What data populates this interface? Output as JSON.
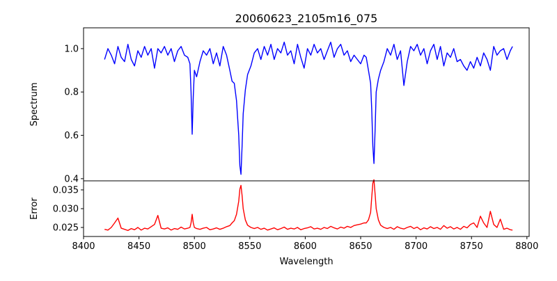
{
  "chart_data": {
    "type": "line",
    "title": "20060623_2105m16_075",
    "xlabel": "Wavelength",
    "xlim": [
      8400,
      8802
    ],
    "xticks": [
      8400,
      8450,
      8500,
      8550,
      8600,
      8650,
      8700,
      8750,
      8800
    ],
    "x": [
      8419,
      8422,
      8425,
      8428,
      8431,
      8434,
      8437,
      8440,
      8443,
      8446,
      8449,
      8452,
      8455,
      8458,
      8461,
      8464,
      8467,
      8470,
      8473,
      8476,
      8479,
      8482,
      8485,
      8488,
      8491,
      8494,
      8496,
      8497,
      8498,
      8499,
      8500,
      8502,
      8505,
      8508,
      8511,
      8514,
      8517,
      8520,
      8523,
      8526,
      8529,
      8532,
      8534,
      8536,
      8538,
      8540,
      8541,
      8542,
      8543,
      8544,
      8546,
      8548,
      8551,
      8554,
      8557,
      8560,
      8563,
      8566,
      8569,
      8572,
      8575,
      8578,
      8581,
      8584,
      8587,
      8590,
      8593,
      8596,
      8599,
      8602,
      8605,
      8608,
      8611,
      8614,
      8617,
      8620,
      8623,
      8626,
      8629,
      8632,
      8635,
      8638,
      8641,
      8644,
      8647,
      8650,
      8653,
      8655,
      8657,
      8659,
      8660,
      8661,
      8662,
      8663,
      8664,
      8666,
      8668,
      8671,
      8674,
      8677,
      8680,
      8683,
      8686,
      8689,
      8692,
      8695,
      8698,
      8701,
      8704,
      8707,
      8710,
      8713,
      8716,
      8719,
      8722,
      8725,
      8728,
      8731,
      8734,
      8737,
      8740,
      8743,
      8746,
      8749,
      8752,
      8755,
      8758,
      8761,
      8764,
      8767,
      8770,
      8773,
      8776,
      8779,
      8782,
      8785,
      8787
    ],
    "panels": [
      {
        "name": "spectrum",
        "ylabel": "Spectrum",
        "ylim": [
          0.39,
          1.096
        ],
        "yticks": [
          0.4,
          0.6,
          0.8,
          1.0
        ],
        "ytick_labels": [
          "0.4",
          "0.6",
          "0.8",
          "1.0"
        ],
        "color": "#0000ff",
        "values": [
          0.95,
          1.0,
          0.97,
          0.93,
          1.01,
          0.96,
          0.94,
          1.02,
          0.95,
          0.92,
          0.99,
          0.96,
          1.01,
          0.97,
          1.0,
          0.91,
          1.0,
          0.98,
          1.01,
          0.97,
          1.0,
          0.94,
          0.99,
          1.01,
          0.97,
          0.96,
          0.93,
          0.8,
          0.605,
          0.78,
          0.9,
          0.87,
          0.94,
          0.99,
          0.97,
          1.0,
          0.93,
          0.98,
          0.92,
          1.01,
          0.97,
          0.9,
          0.85,
          0.84,
          0.76,
          0.6,
          0.46,
          0.42,
          0.55,
          0.7,
          0.81,
          0.88,
          0.92,
          0.98,
          1.0,
          0.95,
          1.01,
          0.97,
          1.02,
          0.95,
          1.0,
          0.98,
          1.03,
          0.97,
          0.99,
          0.93,
          1.02,
          0.96,
          0.91,
          1.0,
          0.97,
          1.02,
          0.98,
          1.0,
          0.95,
          0.99,
          1.03,
          0.96,
          1.0,
          1.02,
          0.97,
          0.99,
          0.94,
          0.97,
          0.95,
          0.93,
          0.97,
          0.96,
          0.9,
          0.84,
          0.72,
          0.55,
          0.47,
          0.62,
          0.8,
          0.86,
          0.9,
          0.94,
          1.0,
          0.97,
          1.02,
          0.95,
          0.99,
          0.83,
          0.94,
          1.01,
          0.99,
          1.02,
          0.97,
          1.0,
          0.93,
          0.99,
          1.02,
          0.95,
          1.01,
          0.92,
          0.98,
          0.96,
          1.0,
          0.94,
          0.95,
          0.92,
          0.9,
          0.94,
          0.91,
          0.96,
          0.92,
          0.98,
          0.95,
          0.9,
          1.01,
          0.97,
          0.99,
          1.0,
          0.95,
          0.99,
          1.01
        ]
      },
      {
        "name": "error",
        "ylabel": "Error",
        "ylim": [
          0.0226,
          0.0374
        ],
        "yticks": [
          0.025,
          0.03,
          0.035
        ],
        "ytick_labels": [
          "0.025",
          "0.030",
          "0.035"
        ],
        "color": "#ff0000",
        "values": [
          0.0245,
          0.0243,
          0.025,
          0.0262,
          0.0275,
          0.0248,
          0.0245,
          0.0242,
          0.0247,
          0.0244,
          0.025,
          0.0243,
          0.0248,
          0.0246,
          0.0252,
          0.0258,
          0.0282,
          0.0248,
          0.0246,
          0.0249,
          0.0243,
          0.0247,
          0.0245,
          0.0251,
          0.0246,
          0.0248,
          0.025,
          0.0262,
          0.0285,
          0.0262,
          0.025,
          0.0247,
          0.0245,
          0.0248,
          0.025,
          0.0244,
          0.0246,
          0.0249,
          0.0245,
          0.0248,
          0.0252,
          0.0255,
          0.0262,
          0.0268,
          0.0285,
          0.032,
          0.0352,
          0.0362,
          0.0335,
          0.03,
          0.027,
          0.0256,
          0.025,
          0.0247,
          0.025,
          0.0245,
          0.0248,
          0.0243,
          0.0246,
          0.0249,
          0.0244,
          0.0247,
          0.0251,
          0.0245,
          0.0248,
          0.0246,
          0.025,
          0.0244,
          0.0247,
          0.0249,
          0.0252,
          0.0246,
          0.0248,
          0.0245,
          0.025,
          0.0247,
          0.0253,
          0.0249,
          0.0246,
          0.0251,
          0.0248,
          0.0253,
          0.025,
          0.0255,
          0.0257,
          0.0259,
          0.0262,
          0.0262,
          0.027,
          0.029,
          0.033,
          0.0368,
          0.0377,
          0.034,
          0.03,
          0.027,
          0.0256,
          0.025,
          0.0247,
          0.025,
          0.0245,
          0.0252,
          0.0248,
          0.0246,
          0.025,
          0.0253,
          0.0247,
          0.0251,
          0.0244,
          0.0249,
          0.0246,
          0.0252,
          0.0247,
          0.025,
          0.0245,
          0.0255,
          0.0248,
          0.0252,
          0.0246,
          0.025,
          0.0245,
          0.0253,
          0.0249,
          0.0258,
          0.0262,
          0.025,
          0.028,
          0.0262,
          0.025,
          0.0293,
          0.0258,
          0.025,
          0.0272,
          0.0245,
          0.0248,
          0.0244,
          0.0243
        ]
      }
    ]
  }
}
